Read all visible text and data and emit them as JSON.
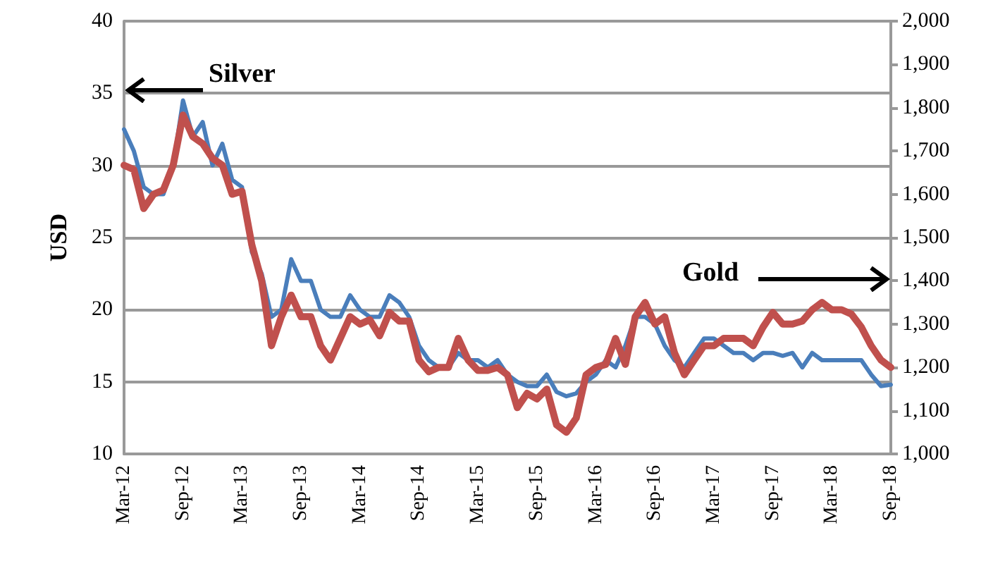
{
  "chart_data": {
    "type": "line",
    "ylabel": "USD",
    "categories": [
      "Mar-12",
      null,
      null,
      null,
      null,
      null,
      "Sep-12",
      null,
      null,
      null,
      null,
      null,
      "Mar-13",
      null,
      null,
      null,
      null,
      null,
      "Sep-13",
      null,
      null,
      null,
      null,
      null,
      "Mar-14",
      null,
      null,
      null,
      null,
      null,
      "Sep-14",
      null,
      null,
      null,
      null,
      null,
      "Mar-15",
      null,
      null,
      null,
      null,
      null,
      "Sep-15",
      null,
      null,
      null,
      null,
      null,
      "Mar-16",
      null,
      null,
      null,
      null,
      null,
      "Sep-16",
      null,
      null,
      null,
      null,
      null,
      "Mar-17",
      null,
      null,
      null,
      null,
      null,
      "Sep-17",
      null,
      null,
      null,
      null,
      null,
      "Mar-18",
      null,
      null,
      null,
      null,
      null,
      "Sep-18"
    ],
    "series": [
      {
        "name": "Silver",
        "color": "#4a7ebb",
        "values": [
          32.5,
          31,
          28.5,
          28,
          28,
          30,
          34.5,
          32,
          33,
          30,
          31.5,
          29,
          28.5,
          24,
          22.5,
          19.5,
          20,
          23.5,
          22,
          22,
          20,
          19.5,
          19.5,
          21,
          20,
          19.5,
          19.5,
          21,
          20.5,
          19.5,
          17.5,
          16.5,
          16,
          16,
          17,
          16.5,
          16.5,
          16,
          16.5,
          15.5,
          15,
          14.7,
          14.7,
          15.5,
          14.3,
          14,
          14.2,
          15,
          15.5,
          16.5,
          16,
          17.5,
          19.5,
          19.5,
          19,
          17.5,
          16.5,
          16,
          17,
          18,
          18,
          17.5,
          17,
          17,
          16.5,
          17,
          17,
          16.8,
          17,
          16,
          17,
          16.5,
          16.5,
          16.5,
          16.5,
          16.5,
          15.5,
          14.7,
          14.8
        ]
      },
      {
        "name": "Gold",
        "color": "#c0504d",
        "axis": "y2",
        "values": [
          1667,
          1657,
          1567,
          1600,
          1610,
          1667,
          1783,
          1733,
          1717,
          1683,
          1667,
          1600,
          1607,
          1483,
          1400,
          1250,
          1317,
          1367,
          1317,
          1317,
          1250,
          1217,
          1267,
          1317,
          1300,
          1310,
          1273,
          1327,
          1307,
          1307,
          1217,
          1190,
          1200,
          1200,
          1267,
          1217,
          1193,
          1193,
          1200,
          1183,
          1107,
          1140,
          1127,
          1150,
          1067,
          1050,
          1083,
          1183,
          1200,
          1207,
          1267,
          1207,
          1317,
          1350,
          1300,
          1317,
          1233,
          1183,
          1217,
          1250,
          1250,
          1267,
          1267,
          1267,
          1250,
          1293,
          1327,
          1300,
          1300,
          1307,
          1333,
          1350,
          1333,
          1333,
          1323,
          1293,
          1250,
          1217,
          1200
        ]
      }
    ],
    "ylim": [
      10,
      40
    ],
    "yticks": [
      10,
      15,
      20,
      25,
      30,
      35,
      40
    ],
    "y2lim": [
      1000,
      2000
    ],
    "y2ticks": [
      {
        "value": 1000,
        "label": "1,000"
      },
      {
        "value": 1100,
        "label": "1,100"
      },
      {
        "value": 1200,
        "label": "1,200"
      },
      {
        "value": 1300,
        "label": "1,300"
      },
      {
        "value": 1400,
        "label": "1,400"
      },
      {
        "value": 1500,
        "label": "1,500"
      },
      {
        "value": 1600,
        "label": "1,600"
      },
      {
        "value": 1700,
        "label": "1,700"
      },
      {
        "value": 1800,
        "label": "1,800"
      },
      {
        "value": 1900,
        "label": "1,900"
      },
      {
        "value": 2000,
        "label": "2,000"
      }
    ],
    "grid": "y",
    "legend": false,
    "marker": "none",
    "line_style": "solid"
  }
}
